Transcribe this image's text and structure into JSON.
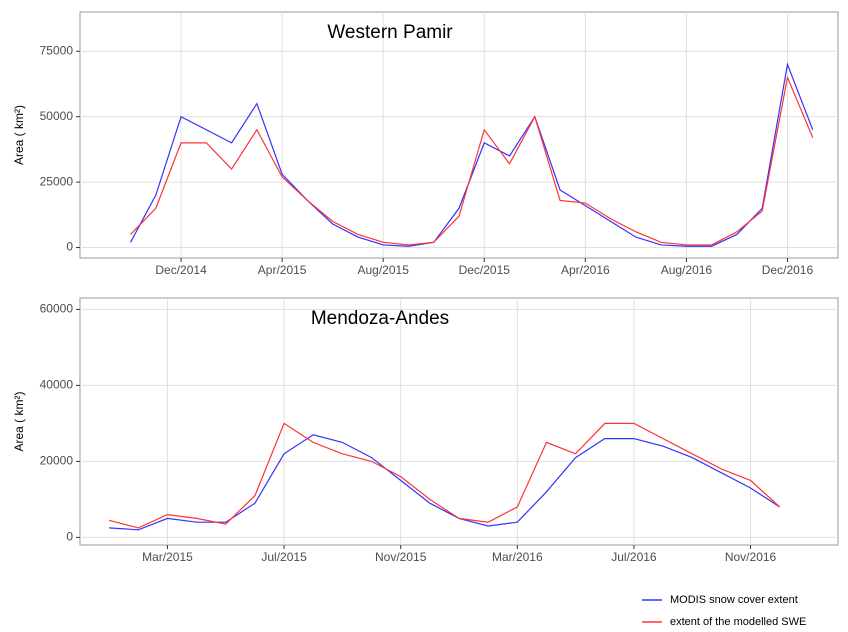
{
  "chart_data": [
    {
      "type": "line",
      "title": "Western Pamir",
      "y_label": "Area ( km²)",
      "x": [
        "2014-10",
        "2014-11",
        "2014-12",
        "2015-01",
        "2015-02",
        "2015-03",
        "2015-04",
        "2015-05",
        "2015-06",
        "2015-07",
        "2015-08",
        "2015-09",
        "2015-10",
        "2015-11",
        "2015-12",
        "2016-01",
        "2016-02",
        "2016-03",
        "2016-04",
        "2016-05",
        "2016-06",
        "2016-07",
        "2016-08",
        "2016-09",
        "2016-10",
        "2016-11",
        "2016-12",
        "2017-01"
      ],
      "series": [
        {
          "name": "MODIS snow cover extent",
          "color": "#3333ff",
          "values": [
            2000,
            20000,
            50000,
            45000,
            40000,
            55000,
            28000,
            18000,
            9000,
            4000,
            1000,
            500,
            2000,
            15000,
            40000,
            35000,
            50000,
            22000,
            16000,
            10000,
            4000,
            1000,
            500,
            500,
            5000,
            15000,
            70000,
            45000
          ]
        },
        {
          "name": "extent of the modelled SWE",
          "color": "#ff3333",
          "values": [
            5000,
            15000,
            40000,
            40000,
            30000,
            45000,
            27000,
            18000,
            10000,
            5000,
            2000,
            1000,
            2000,
            12000,
            45000,
            32000,
            50000,
            18000,
            17000,
            11000,
            6000,
            2000,
            1000,
            1000,
            6000,
            14000,
            65000,
            42000
          ]
        }
      ],
      "xlim": [
        "2014-08",
        "2017-02"
      ],
      "xticks": [
        {
          "value": "2014-12",
          "label": "Dec/2014"
        },
        {
          "value": "2015-04",
          "label": "Apr/2015"
        },
        {
          "value": "2015-08",
          "label": "Aug/2015"
        },
        {
          "value": "2015-12",
          "label": "Dec/2015"
        },
        {
          "value": "2016-04",
          "label": "Apr/2016"
        },
        {
          "value": "2016-08",
          "label": "Aug/2016"
        },
        {
          "value": "2016-12",
          "label": "Dec/2016"
        }
      ],
      "ylim": [
        -4000,
        90000
      ],
      "yticks": [
        0,
        25000,
        50000,
        75000
      ],
      "grid": true
    },
    {
      "type": "line",
      "title": "Mendoza-Andes",
      "y_label": "Area ( km²)",
      "x": [
        "2015-01",
        "2015-02",
        "2015-03",
        "2015-04",
        "2015-05",
        "2015-06",
        "2015-07",
        "2015-08",
        "2015-09",
        "2015-10",
        "2015-11",
        "2015-12",
        "2016-01",
        "2016-02",
        "2016-03",
        "2016-04",
        "2016-05",
        "2016-06",
        "2016-07",
        "2016-08",
        "2016-09",
        "2016-10",
        "2016-11",
        "2016-12"
      ],
      "series": [
        {
          "color": "#3333ff",
          "values": [
            2500,
            2000,
            5000,
            4000,
            4000,
            9000,
            22000,
            27000,
            25000,
            21000,
            15000,
            9000,
            5000,
            3000,
            4000,
            12000,
            21000,
            26000,
            26000,
            24000,
            21000,
            17000,
            13000,
            8000
          ]
        },
        {
          "color": "#ff3333",
          "values": [
            4500,
            2500,
            6000,
            5000,
            3500,
            11000,
            30000,
            25000,
            22000,
            20000,
            16000,
            10000,
            5000,
            4000,
            8000,
            25000,
            22000,
            30000,
            30000,
            26000,
            22000,
            18000,
            15000,
            8000
          ]
        }
      ],
      "xlim": [
        "2014-12",
        "2017-02"
      ],
      "xticks": [
        {
          "value": "2015-03",
          "label": "Mar/2015"
        },
        {
          "value": "2015-07",
          "label": "Jul/2015"
        },
        {
          "value": "2015-11",
          "label": "Nov/2015"
        },
        {
          "value": "2016-03",
          "label": "Mar/2016"
        },
        {
          "value": "2016-07",
          "label": "Jul/2016"
        },
        {
          "value": "2016-11",
          "label": "Nov/2016"
        }
      ],
      "ylim": [
        -2000,
        63000
      ],
      "yticks": [
        0,
        20000,
        40000,
        60000
      ],
      "grid": true
    }
  ]
}
